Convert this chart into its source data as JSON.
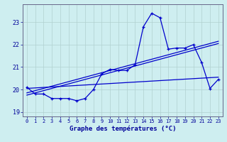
{
  "xlabel": "Graphe des températures (°C)",
  "bg_color": "#ceeef0",
  "line_color": "#0000cc",
  "grid_color": "#b0d0d0",
  "ylim": [
    18.8,
    23.8
  ],
  "yticks": [
    19,
    20,
    21,
    22,
    23
  ],
  "xticks": [
    0,
    1,
    2,
    3,
    4,
    5,
    6,
    7,
    8,
    9,
    10,
    11,
    12,
    13,
    14,
    15,
    16,
    17,
    18,
    19,
    20,
    21,
    22,
    23
  ],
  "temp_data": [
    20.1,
    19.8,
    19.8,
    19.6,
    19.6,
    19.6,
    19.5,
    19.6,
    20.0,
    20.7,
    20.9,
    20.85,
    20.85,
    21.1,
    22.8,
    23.4,
    23.2,
    21.8,
    21.85,
    21.85,
    22.0,
    21.2,
    20.05,
    20.45
  ],
  "trend1_start": 19.75,
  "trend1_end": 22.05,
  "trend2_start": 19.85,
  "trend2_end": 22.15,
  "trend3_start": 20.05,
  "trend3_end": 20.55
}
